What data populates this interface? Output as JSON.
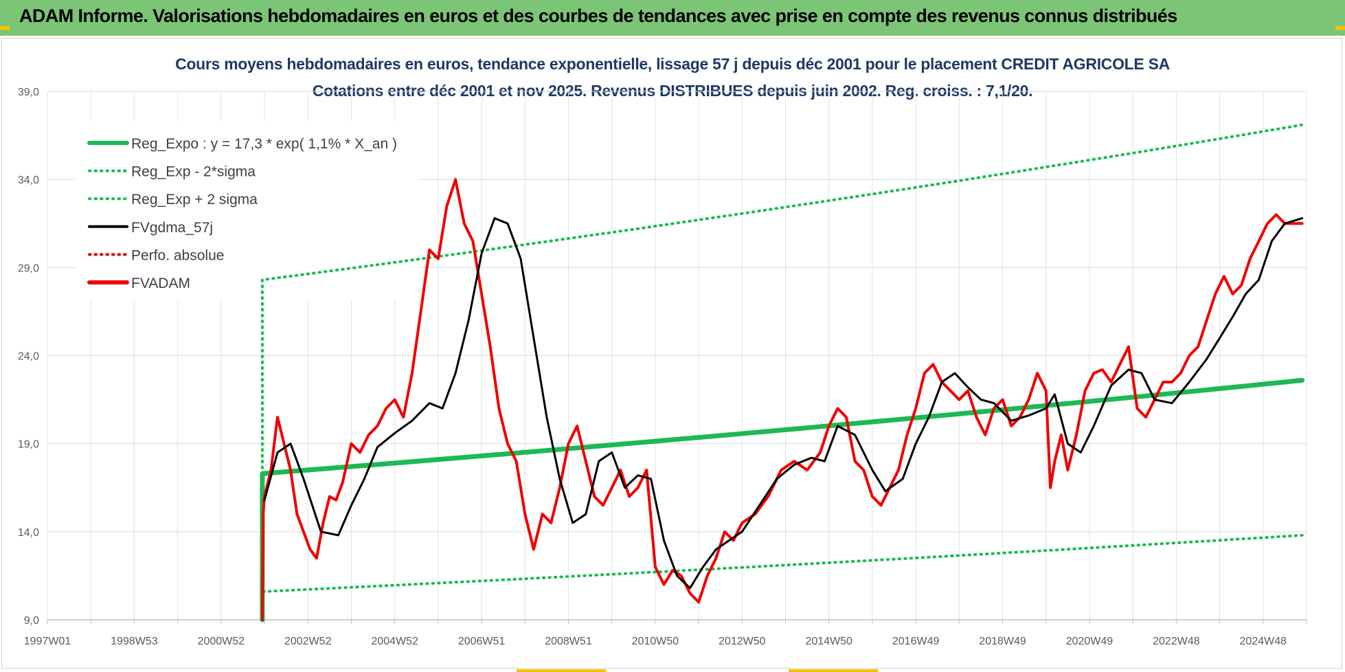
{
  "header": {
    "title": "ADAM Informe. Valorisations hebdomadaires en euros et des courbes de tendances avec prise en compte des revenus connus distribués"
  },
  "colors": {
    "header_bg": "#7cc576",
    "title_color": "#1f3864",
    "reg_expo": "#1db954",
    "sigma": "#1db954",
    "fvgdma": "#000000",
    "perfo": "#e00000",
    "fvadam": "#f00000"
  },
  "chart_data": {
    "type": "line",
    "title": "Cours moyens hebdomadaires en euros, tendance exponentielle, lissage 57 j depuis déc 2001 pour le placement CREDIT AGRICOLE SA",
    "subtitle": "Cotations entre déc 2001 et nov 2025.  Revenus DISTRIBUES depuis juin 2002. Reg. croiss. : 7,1/20.",
    "xlabel": "",
    "ylabel": "",
    "ylim": [
      9.0,
      39.0
    ],
    "y_ticks": [
      "9,0",
      "14,0",
      "19,0",
      "24,0",
      "29,0",
      "34,0",
      "39,0"
    ],
    "x_ticks": [
      "1997W01",
      "1998W53",
      "2000W52",
      "2002W52",
      "2004W52",
      "2006W51",
      "2008W51",
      "2010W50",
      "2012W50",
      "2014W50",
      "2016W49",
      "2018W49",
      "2020W49",
      "2022W48",
      "2024W48"
    ],
    "grid": true,
    "legend_placement": "top-left",
    "legend": [
      {
        "name": "Reg_Expo : y = 17,3 * exp( 1,1% *  X_an )",
        "style": "solid-thick",
        "color": "#1db954"
      },
      {
        "name": "Reg_Exp - 2*sigma",
        "style": "dotted",
        "color": "#1db954"
      },
      {
        "name": "Reg_Exp + 2 sigma",
        "style": "dotted",
        "color": "#1db954"
      },
      {
        "name": "FVgdma_57j",
        "style": "solid",
        "color": "#000000"
      },
      {
        "name": "Perfo. absolue",
        "style": "dotted",
        "color": "#e00000"
      },
      {
        "name": "FVADAM",
        "style": "solid-thick",
        "color": "#f00000"
      }
    ],
    "x_years_range": [
      1997.0,
      2026.0
    ],
    "series": [
      {
        "name": "Reg_Expo : y = 17,3 * exp( 1,1% *  X_an )",
        "x": [
          2001.95,
          2001.95,
          2025.9
        ],
        "y": [
          9.0,
          17.3,
          22.6
        ]
      },
      {
        "name": "Reg_Exp - 2*sigma",
        "x": [
          2001.95,
          2001.95,
          2025.9
        ],
        "y": [
          9.0,
          10.6,
          13.8
        ]
      },
      {
        "name": "Reg_Exp + 2 sigma",
        "x": [
          2001.95,
          2001.95,
          2025.9
        ],
        "y": [
          9.0,
          28.3,
          37.1
        ]
      },
      {
        "name": "FVgdma_57j",
        "x": [
          2002.0,
          2002.3,
          2002.6,
          2002.9,
          2003.3,
          2003.7,
          2004.0,
          2004.3,
          2004.6,
          2005.0,
          2005.4,
          2005.8,
          2006.1,
          2006.4,
          2006.7,
          2007.0,
          2007.3,
          2007.6,
          2007.9,
          2008.2,
          2008.5,
          2008.8,
          2009.1,
          2009.4,
          2009.7,
          2010.0,
          2010.3,
          2010.6,
          2010.9,
          2011.2,
          2011.5,
          2011.8,
          2012.1,
          2012.4,
          2012.7,
          2013.0,
          2013.4,
          2013.8,
          2014.2,
          2014.6,
          2014.9,
          2015.2,
          2015.6,
          2016.0,
          2016.3,
          2016.7,
          2017.0,
          2017.3,
          2017.6,
          2017.9,
          2018.2,
          2018.5,
          2018.8,
          2019.2,
          2019.6,
          2020.0,
          2020.2,
          2020.5,
          2020.8,
          2021.1,
          2021.5,
          2021.9,
          2022.2,
          2022.5,
          2022.9,
          2023.3,
          2023.7,
          2024.0,
          2024.3,
          2024.6,
          2024.9,
          2025.2,
          2025.5,
          2025.9
        ],
        "y": [
          15.8,
          18.5,
          19.0,
          17.0,
          14.0,
          13.8,
          15.5,
          17.0,
          18.8,
          19.6,
          20.3,
          21.3,
          21.0,
          23.0,
          26.0,
          29.8,
          31.8,
          31.5,
          29.5,
          25.0,
          20.5,
          17.0,
          14.5,
          15.0,
          18.0,
          18.5,
          16.5,
          17.2,
          17.0,
          13.5,
          11.5,
          10.8,
          12.0,
          13.0,
          13.5,
          14.0,
          15.5,
          17.0,
          17.8,
          18.2,
          18.0,
          20.0,
          19.5,
          17.5,
          16.3,
          17.0,
          19.0,
          20.5,
          22.5,
          23.0,
          22.2,
          21.5,
          21.3,
          20.3,
          20.6,
          21.0,
          21.8,
          19.0,
          18.5,
          20.0,
          22.3,
          23.2,
          23.0,
          21.5,
          21.3,
          22.5,
          23.8,
          25.0,
          26.2,
          27.5,
          28.3,
          30.5,
          31.5,
          31.8
        ]
      },
      {
        "name": "FVADAM",
        "x": [
          2001.95,
          2001.97,
          2002.0,
          2002.15,
          2002.3,
          2002.45,
          2002.6,
          2002.75,
          2002.9,
          2003.05,
          2003.2,
          2003.35,
          2003.5,
          2003.65,
          2003.8,
          2004.0,
          2004.2,
          2004.4,
          2004.6,
          2004.8,
          2005.0,
          2005.2,
          2005.4,
          2005.6,
          2005.8,
          2006.0,
          2006.2,
          2006.4,
          2006.6,
          2006.8,
          2007.0,
          2007.2,
          2007.4,
          2007.6,
          2007.8,
          2008.0,
          2008.2,
          2008.4,
          2008.6,
          2008.8,
          2009.0,
          2009.2,
          2009.4,
          2009.6,
          2009.8,
          2010.0,
          2010.2,
          2010.4,
          2010.6,
          2010.8,
          2011.0,
          2011.2,
          2011.4,
          2011.6,
          2011.8,
          2012.0,
          2012.2,
          2012.4,
          2012.6,
          2012.8,
          2013.0,
          2013.3,
          2013.6,
          2013.9,
          2014.2,
          2014.5,
          2014.8,
          2015.0,
          2015.2,
          2015.4,
          2015.6,
          2015.8,
          2016.0,
          2016.2,
          2016.4,
          2016.6,
          2016.8,
          2017.0,
          2017.2,
          2017.4,
          2017.6,
          2017.8,
          2018.0,
          2018.2,
          2018.4,
          2018.6,
          2018.8,
          2019.0,
          2019.2,
          2019.4,
          2019.6,
          2019.8,
          2020.0,
          2020.1,
          2020.2,
          2020.35,
          2020.5,
          2020.7,
          2020.9,
          2021.1,
          2021.3,
          2021.5,
          2021.7,
          2021.9,
          2022.1,
          2022.3,
          2022.5,
          2022.7,
          2022.9,
          2023.1,
          2023.3,
          2023.5,
          2023.7,
          2023.9,
          2024.1,
          2024.3,
          2024.5,
          2024.7,
          2024.9,
          2025.1,
          2025.3,
          2025.5,
          2025.7,
          2025.9
        ],
        "y": [
          9.0,
          15.0,
          16.0,
          17.5,
          20.5,
          19.0,
          17.5,
          15.0,
          14.0,
          13.0,
          12.5,
          14.5,
          16.0,
          15.8,
          16.8,
          19.0,
          18.5,
          19.5,
          20.0,
          21.0,
          21.5,
          20.5,
          23.0,
          26.5,
          30.0,
          29.5,
          32.5,
          34.0,
          31.5,
          30.5,
          27.5,
          24.5,
          21.0,
          19.0,
          18.0,
          15.0,
          13.0,
          15.0,
          14.5,
          16.5,
          19.0,
          20.0,
          18.0,
          16.0,
          15.5,
          16.5,
          17.5,
          16.0,
          16.5,
          17.5,
          12.0,
          11.0,
          11.8,
          11.5,
          10.5,
          10.0,
          11.5,
          12.5,
          14.0,
          13.5,
          14.5,
          15.0,
          16.0,
          17.5,
          18.0,
          17.5,
          18.5,
          20.0,
          21.0,
          20.5,
          18.0,
          17.5,
          16.0,
          15.5,
          16.5,
          17.5,
          19.5,
          21.0,
          23.0,
          23.5,
          22.5,
          22.0,
          21.5,
          22.0,
          20.5,
          19.5,
          21.0,
          21.5,
          20.0,
          20.5,
          21.5,
          23.0,
          22.0,
          16.5,
          18.0,
          19.5,
          17.5,
          19.5,
          22.0,
          23.0,
          23.2,
          22.5,
          23.5,
          24.5,
          21.0,
          20.5,
          21.5,
          22.5,
          22.5,
          23.0,
          24.0,
          24.5,
          26.0,
          27.5,
          28.5,
          27.5,
          28.0,
          29.5,
          30.5,
          31.5,
          32.0,
          31.5,
          31.5,
          31.5
        ]
      }
    ]
  }
}
